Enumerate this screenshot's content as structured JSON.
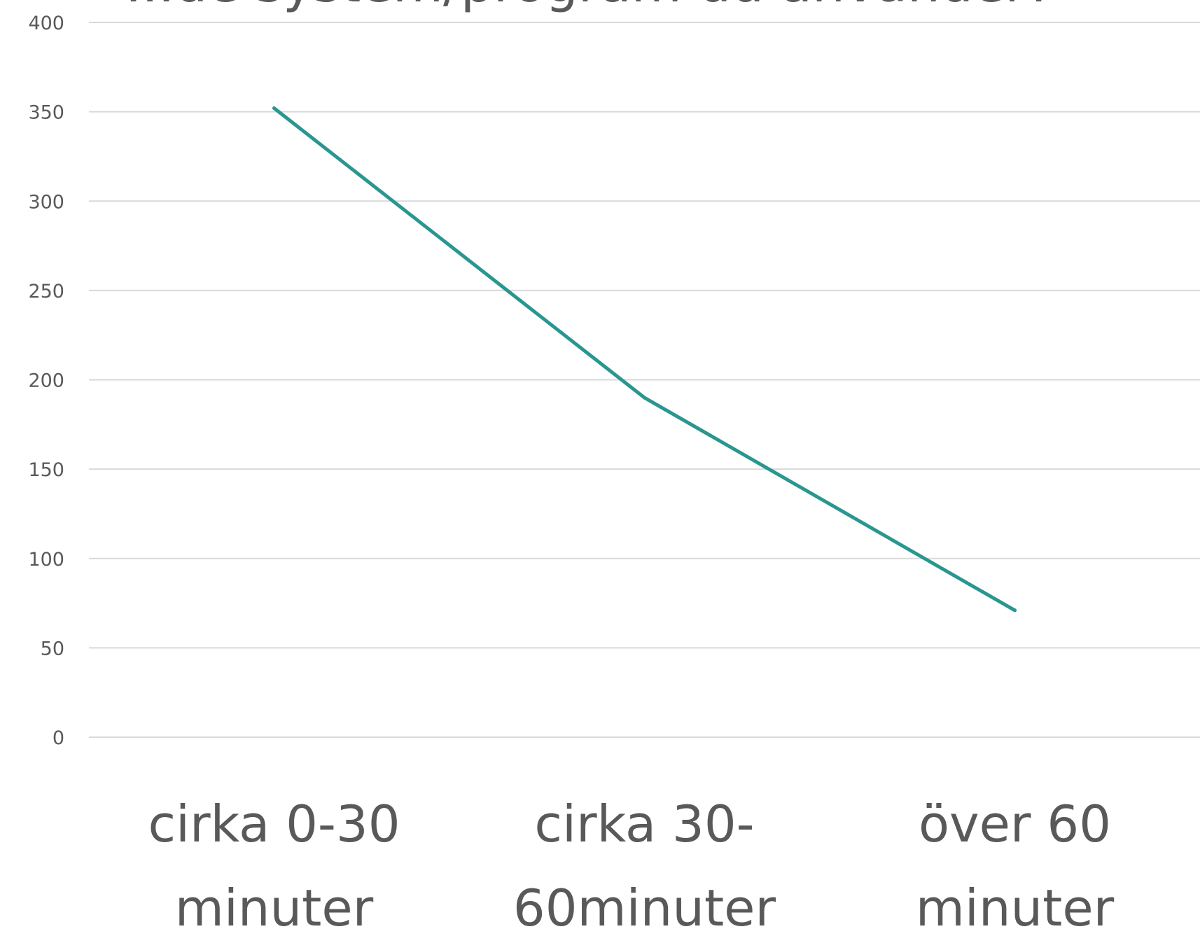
{
  "chart_data": {
    "type": "line",
    "title": "...de system/program du använder?",
    "categories": [
      [
        "cirka 0-30",
        "minuter"
      ],
      [
        "cirka 30-",
        "60minuter"
      ],
      [
        "över 60",
        "minuter"
      ]
    ],
    "series": [
      {
        "values": [
          352,
          190,
          71
        ],
        "color": "#2a9690"
      }
    ],
    "ylim": [
      0,
      400
    ],
    "yticks": [
      0,
      50,
      100,
      150,
      200,
      250,
      300,
      350,
      400
    ],
    "grid": true,
    "xlabel": "",
    "ylabel": ""
  }
}
